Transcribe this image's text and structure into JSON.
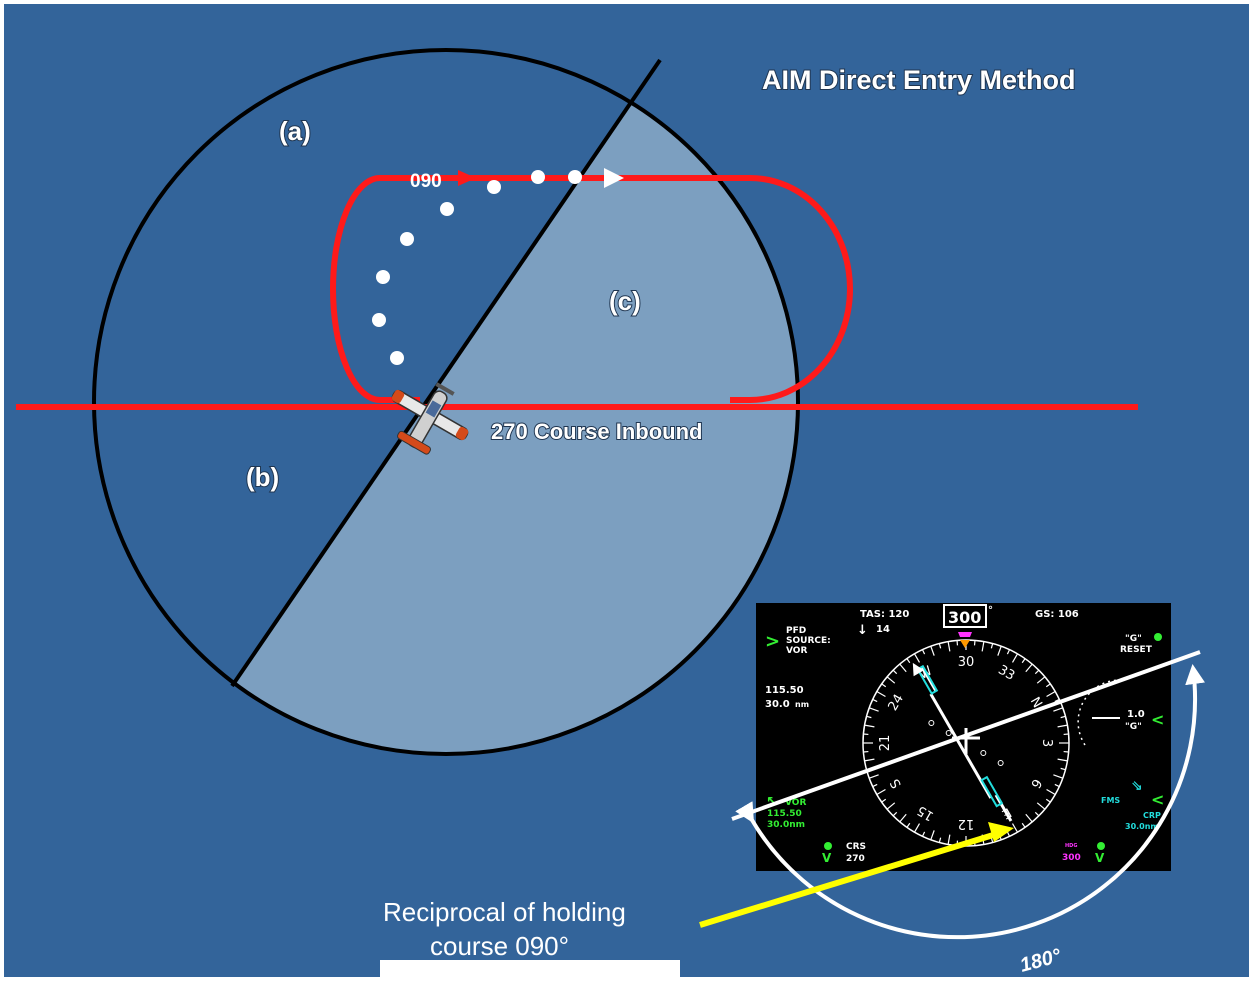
{
  "title": "AIM Direct Entry Method",
  "regions": {
    "a": "(a)",
    "b": "(b)",
    "c": "(c)"
  },
  "holding": {
    "outbound_heading": "090",
    "inbound_course_label": "270 Course Inbound"
  },
  "annotation": {
    "line1": "Reciprocal of holding",
    "line2": "course 090°",
    "arc_label": "180°"
  },
  "pfd": {
    "tas": "TAS: 120",
    "vs": "14",
    "heading": "300",
    "heading_deg": "°",
    "gs": "GS: 106",
    "source_line1": "PFD",
    "source_line2": "SOURCE:",
    "source_line3": "VOR",
    "freq": "115.50",
    "dist": "30.0",
    "dist_unit": "nm",
    "g_reset_line1": "\"G\"",
    "g_reset_line2": "RESET",
    "g_value": "1.0",
    "g_label": "\"G\"",
    "vor_label": "VOR",
    "vor_freq": "115.50",
    "vor_dist": "30.0nm",
    "fms_label": "FMS",
    "crp_label": "CRP",
    "crp_dist": "30.0nm",
    "crs_label": "CRS",
    "crs_value": "270",
    "bug_label": "HDG",
    "bug_value": "300",
    "compass_labels": [
      "N",
      "3",
      "6",
      "E",
      "12",
      "15",
      "S",
      "21",
      "24",
      "W",
      "30",
      "33"
    ]
  },
  "colors": {
    "background": "#33649a",
    "shaded_sector": "#7c9fc0",
    "track": "#ff1a1a",
    "pointer": "#ffff00",
    "pfd_bg": "#000000"
  }
}
